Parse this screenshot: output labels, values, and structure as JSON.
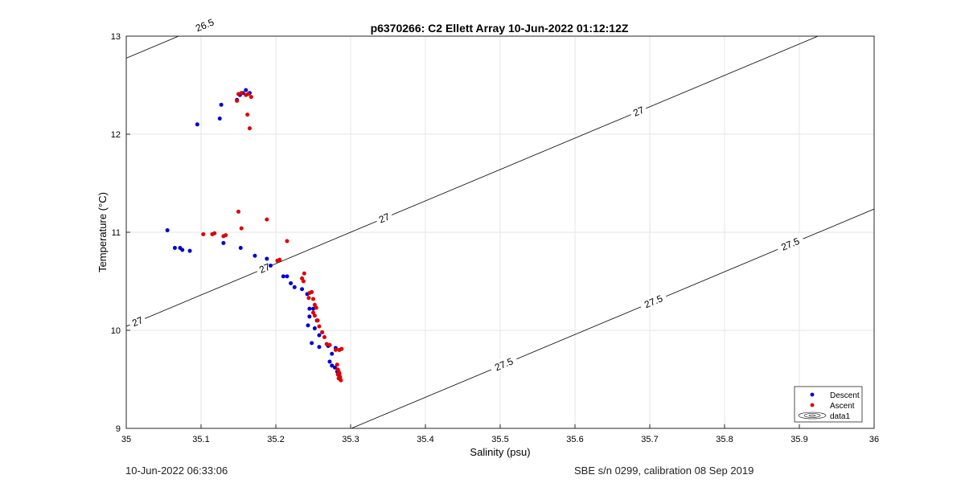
{
  "chart_data": {
    "type": "scatter",
    "title": "p6370266: C2 Ellett Array 10-Jun-2022 01:12:12Z",
    "xlabel": "Salinity (psu)",
    "ylabel": "Temperature (°C)",
    "xlim": [
      35,
      36
    ],
    "ylim": [
      9,
      13
    ],
    "xticks": [
      "35",
      "35.1",
      "35.2",
      "35.3",
      "35.4",
      "35.5",
      "35.6",
      "35.7",
      "35.8",
      "35.9",
      "36"
    ],
    "yticks": [
      "9",
      "10",
      "11",
      "12",
      "13"
    ],
    "grid": true,
    "legend_position": "bottom-right",
    "series": [
      {
        "name": "Descent",
        "color": "#0000cc",
        "points": [
          [
            35.095,
            12.1
          ],
          [
            35.125,
            12.16
          ],
          [
            35.127,
            12.3
          ],
          [
            35.148,
            12.35
          ],
          [
            35.152,
            12.4
          ],
          [
            35.156,
            12.42
          ],
          [
            35.16,
            12.45
          ],
          [
            35.165,
            12.42
          ],
          [
            35.055,
            11.02
          ],
          [
            35.065,
            10.84
          ],
          [
            35.072,
            10.84
          ],
          [
            35.075,
            10.82
          ],
          [
            35.085,
            10.81
          ],
          [
            35.13,
            10.89
          ],
          [
            35.153,
            10.84
          ],
          [
            35.172,
            10.76
          ],
          [
            35.188,
            10.73
          ],
          [
            35.193,
            10.66
          ],
          [
            35.21,
            10.55
          ],
          [
            35.215,
            10.55
          ],
          [
            35.22,
            10.48
          ],
          [
            35.225,
            10.44
          ],
          [
            35.235,
            10.42
          ],
          [
            35.242,
            10.37
          ],
          [
            35.245,
            10.22
          ],
          [
            35.245,
            10.14
          ],
          [
            35.243,
            10.05
          ],
          [
            35.25,
            10.22
          ],
          [
            35.255,
            10.1
          ],
          [
            35.252,
            10.02
          ],
          [
            35.258,
            9.95
          ],
          [
            35.262,
            9.98
          ],
          [
            35.248,
            9.87
          ],
          [
            35.258,
            9.83
          ],
          [
            35.27,
            9.84
          ],
          [
            35.275,
            9.76
          ],
          [
            35.272,
            9.68
          ],
          [
            35.275,
            9.64
          ],
          [
            35.279,
            9.62
          ],
          [
            35.28,
            9.82
          ],
          [
            35.282,
            9.58
          ],
          [
            35.283,
            9.55
          ],
          [
            35.285,
            9.53
          ],
          [
            35.285,
            9.8
          ]
        ]
      },
      {
        "name": "Ascent",
        "color": "#dd0000",
        "points": [
          [
            35.148,
            12.34
          ],
          [
            35.15,
            12.41
          ],
          [
            35.154,
            12.42
          ],
          [
            35.16,
            12.4
          ],
          [
            35.163,
            12.41
          ],
          [
            35.167,
            12.38
          ],
          [
            35.162,
            12.2
          ],
          [
            35.165,
            12.06
          ],
          [
            35.15,
            11.21
          ],
          [
            35.154,
            11.04
          ],
          [
            35.188,
            11.13
          ],
          [
            35.215,
            10.91
          ],
          [
            35.205,
            10.72
          ],
          [
            35.202,
            10.71
          ],
          [
            35.103,
            10.98
          ],
          [
            35.115,
            10.98
          ],
          [
            35.118,
            10.99
          ],
          [
            35.133,
            10.97
          ],
          [
            35.13,
            10.96
          ],
          [
            35.238,
            10.58
          ],
          [
            35.235,
            10.53
          ],
          [
            35.237,
            10.5
          ],
          [
            35.245,
            10.38
          ],
          [
            35.248,
            10.39
          ],
          [
            35.25,
            10.32
          ],
          [
            35.244,
            10.33
          ],
          [
            35.252,
            10.26
          ],
          [
            35.25,
            10.18
          ],
          [
            35.254,
            10.23
          ],
          [
            35.252,
            10.15
          ],
          [
            35.256,
            10.1
          ],
          [
            35.258,
            10.04
          ],
          [
            35.262,
            9.98
          ],
          [
            35.265,
            9.93
          ],
          [
            35.268,
            9.86
          ],
          [
            35.272,
            9.85
          ],
          [
            35.28,
            9.8
          ],
          [
            35.285,
            9.8
          ],
          [
            35.288,
            9.81
          ],
          [
            35.282,
            9.65
          ],
          [
            35.283,
            9.6
          ],
          [
            35.284,
            9.58
          ],
          [
            35.285,
            9.56
          ],
          [
            35.285,
            9.54
          ],
          [
            35.286,
            9.52
          ],
          [
            35.286,
            9.5
          ],
          [
            35.287,
            9.49
          ],
          [
            35.283,
            9.55
          ],
          [
            35.284,
            9.51
          ]
        ]
      }
    ],
    "contours": {
      "name": "data1",
      "levels": [
        26.5,
        27,
        27.5
      ],
      "labels": [
        {
          "text": "26.5",
          "value": 26.5
        },
        {
          "text": "27",
          "value": 27
        },
        {
          "text": "27",
          "value": 27
        },
        {
          "text": "27",
          "value": 27
        },
        {
          "text": "27",
          "value": 27
        },
        {
          "text": "27.5",
          "value": 27.5
        },
        {
          "text": "27.5",
          "value": 27.5
        },
        {
          "text": "27.5",
          "value": 27.5
        }
      ]
    }
  },
  "footer": {
    "left": "10-Jun-2022 06:33:06",
    "right": "SBE s/n 0299, calibration 08 Sep 2019"
  }
}
